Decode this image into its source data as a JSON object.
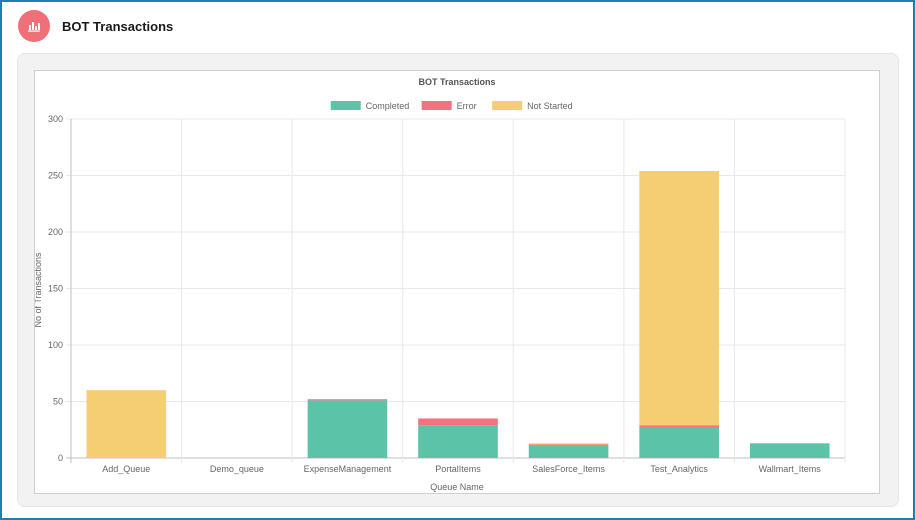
{
  "header": {
    "title": "BOT Transactions",
    "icon": "bar-chart-icon"
  },
  "chart_data": {
    "type": "bar",
    "stacked": true,
    "title": "BOT Transactions",
    "xlabel": "Queue Name",
    "ylabel": "No of Transactions",
    "ylim": [
      0,
      300
    ],
    "yticks": [
      0,
      50,
      100,
      150,
      200,
      250,
      300
    ],
    "grid": true,
    "legend_position": "top-center",
    "categories": [
      "Add_Queue",
      "Demo_queue",
      "ExpenseManagement",
      "PortalItems",
      "SalesForce_Items",
      "Test_Analytics",
      "Wallmart_Items"
    ],
    "series": [
      {
        "name": "Completed",
        "color": "#5bc4a8",
        "values": [
          0,
          0,
          51,
          29,
          11,
          27,
          13
        ]
      },
      {
        "name": "Error",
        "color": "#f4717f",
        "values": [
          0,
          0,
          1,
          6,
          1,
          2,
          0
        ]
      },
      {
        "name": "Not Started",
        "color": "#f5cd72",
        "values": [
          60,
          0,
          0,
          0,
          1,
          225,
          0
        ]
      }
    ]
  }
}
